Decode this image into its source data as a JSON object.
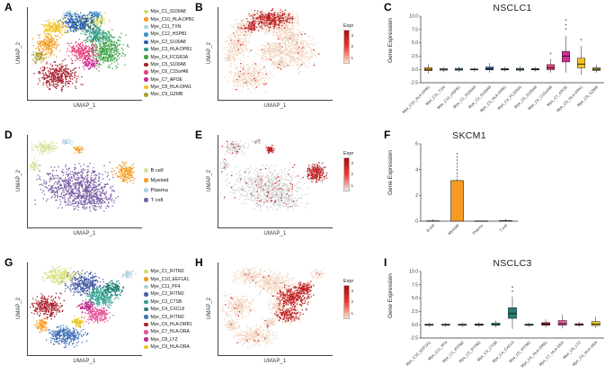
{
  "figure": {
    "panel_letters": [
      "A",
      "B",
      "C",
      "D",
      "E",
      "F",
      "G",
      "H",
      "I"
    ],
    "background": "#ffffff"
  },
  "axes": {
    "x": "UMAP_1",
    "y": "UMAP_2"
  },
  "blob_format": "x,y,rx,ry,n,color (normalized plot coords, y down)",
  "chart_data": [
    {
      "id": "A",
      "type": "scatter",
      "subtype": "umap-clusters",
      "seed": 11,
      "xlabel": "UMAP_1",
      "ylabel": "UMAP_2",
      "legend": [
        {
          "label": "Mye_C1_S100A8",
          "color": "#d4dd70"
        },
        {
          "label": "Mye_C10_HLA-DPB1",
          "color": "#f59b21"
        },
        {
          "label": "Mye_C11_TXN",
          "color": "#a8cfe3"
        },
        {
          "label": "Mye_C12_HSPB1",
          "color": "#4292c6"
        },
        {
          "label": "Mye_C2_S100A8",
          "color": "#2b5fad"
        },
        {
          "label": "Mye_C3_HLA-DPB1",
          "color": "#2e9e8e"
        },
        {
          "label": "Mye_C4_FCGR3A",
          "color": "#41a347"
        },
        {
          "label": "Mye_C5_S100A8",
          "color": "#a81e2c"
        },
        {
          "label": "Mye_C6_C15orf48",
          "color": "#e8417f"
        },
        {
          "label": "Mye_C7_APOE",
          "color": "#cf2d95"
        },
        {
          "label": "Mye_C8_HLA-DPA1",
          "color": "#f3c320"
        },
        {
          "label": "Mye_C9_GZMB",
          "color": "#b09c2f"
        }
      ],
      "blobs": [
        [
          0.52,
          0.18,
          0.1,
          0.06,
          150,
          "#d4dd70"
        ],
        [
          0.62,
          0.12,
          0.05,
          0.04,
          60,
          "#d4dd70"
        ],
        [
          0.16,
          0.4,
          0.07,
          0.08,
          200,
          "#f59b21"
        ],
        [
          0.36,
          0.07,
          0.05,
          0.025,
          60,
          "#a8cfe3"
        ],
        [
          0.58,
          0.07,
          0.04,
          0.025,
          50,
          "#4292c6"
        ],
        [
          0.44,
          0.16,
          0.12,
          0.07,
          330,
          "#2b5fad"
        ],
        [
          0.6,
          0.3,
          0.08,
          0.07,
          200,
          "#2e9e8e"
        ],
        [
          0.68,
          0.46,
          0.11,
          0.13,
          400,
          "#41a347"
        ],
        [
          0.26,
          0.73,
          0.12,
          0.1,
          360,
          "#a81e2c"
        ],
        [
          0.47,
          0.47,
          0.09,
          0.07,
          240,
          "#e8417f"
        ],
        [
          0.53,
          0.6,
          0.05,
          0.04,
          80,
          "#cf2d95"
        ],
        [
          0.22,
          0.21,
          0.07,
          0.06,
          170,
          "#f3c320"
        ],
        [
          0.1,
          0.52,
          0.04,
          0.05,
          70,
          "#b09c2f"
        ]
      ]
    },
    {
      "id": "B",
      "type": "scatter",
      "subtype": "umap-feature",
      "seed": 22,
      "xlabel": "UMAP_1",
      "ylabel": "UMAP_2",
      "base_from": "A",
      "base_color": "#f2d8c4",
      "highlight": "#bf1f26",
      "speckle": 0.05,
      "hot": [
        [
          0.45,
          0.12,
          0.12,
          0.06,
          280
        ],
        [
          0.28,
          0.2,
          0.05,
          0.04,
          60
        ]
      ],
      "colorbar": {
        "label": "Expr",
        "ticks": [
          "3",
          "2",
          "1"
        ],
        "high": "#a50f15",
        "mid": "#ef3b2c",
        "low": "#fde0cd"
      }
    },
    {
      "id": "C",
      "type": "box",
      "title": "NSCLC1",
      "ylabel": "Gene Expression",
      "ylim": [
        -2.5,
        10
      ],
      "yticks": [
        10,
        7.5,
        5,
        2.5,
        0,
        -2.5
      ],
      "ytick_labels": [
        "10.0",
        "7.5",
        "5.0",
        "2.5",
        "0.0",
        "-2.5"
      ],
      "boxes": [
        {
          "label": "Mye_C10_HLA-DPB1",
          "color": "#f59b21",
          "lo": -0.8,
          "q1": -0.25,
          "med": 0.0,
          "q3": 0.35,
          "hi": 1.0
        },
        {
          "label": "Mye_C11_TXN",
          "color": "#a8cfe3",
          "lo": -0.5,
          "q1": -0.15,
          "med": 0.0,
          "q3": 0.15,
          "hi": 0.45
        },
        {
          "label": "Mye_C12_HSPB1",
          "color": "#4292c6",
          "lo": -0.5,
          "q1": -0.15,
          "med": 0.0,
          "q3": 0.2,
          "hi": 0.5
        },
        {
          "label": "Mye_C1_S100A8",
          "color": "#d4dd70",
          "lo": -0.4,
          "q1": -0.1,
          "med": 0.0,
          "q3": 0.1,
          "hi": 0.35
        },
        {
          "label": "Mye_C2_S100A8",
          "color": "#2b5fad",
          "lo": -0.6,
          "q1": -0.1,
          "med": 0.1,
          "q3": 0.45,
          "hi": 1.2
        },
        {
          "label": "Mye_C3_HLA-DPB1",
          "color": "#2e9e8e",
          "lo": -0.4,
          "q1": -0.1,
          "med": 0.0,
          "q3": 0.15,
          "hi": 0.5
        },
        {
          "label": "Mye_C4_FCGR3A",
          "color": "#41a347",
          "lo": -0.5,
          "q1": -0.15,
          "med": 0.0,
          "q3": 0.2,
          "hi": 0.6
        },
        {
          "label": "Mye_C5_S100A8",
          "color": "#a81e2c",
          "lo": -0.4,
          "q1": -0.1,
          "med": 0.0,
          "q3": 0.15,
          "hi": 0.45
        },
        {
          "label": "Mye_C6_C15orf48",
          "color": "#e8417f",
          "lo": -0.6,
          "q1": -0.05,
          "med": 0.3,
          "q3": 0.9,
          "hi": 2.0,
          "out": [
            3.0
          ]
        },
        {
          "label": "Mye_C7_APOE",
          "color": "#cf2d95",
          "lo": -0.6,
          "q1": 1.4,
          "med": 2.5,
          "q3": 3.4,
          "hi": 6.3,
          "out": [
            7.6,
            8.4,
            9.3
          ]
        },
        {
          "label": "Mye_C8_HLA-DPA1",
          "color": "#f3c320",
          "lo": -1.0,
          "q1": 0.3,
          "med": 1.0,
          "q3": 2.1,
          "hi": 4.4,
          "out": [
            5.6
          ]
        },
        {
          "label": "Mye_C9_GZMB",
          "color": "#b09c2f",
          "lo": -0.6,
          "q1": -0.2,
          "med": 0.0,
          "q3": 0.3,
          "hi": 0.9
        }
      ]
    },
    {
      "id": "D",
      "type": "scatter",
      "subtype": "umap-clusters",
      "seed": 33,
      "xlabel": "UMAP_1",
      "ylabel": "UMAP_2",
      "legend": [
        {
          "label": "B cell",
          "color": "#d5e39f"
        },
        {
          "label": "Myeloid",
          "color": "#f59b21"
        },
        {
          "label": "Plasma",
          "color": "#a8cfe3"
        },
        {
          "label": "T cell",
          "color": "#7a5ea6"
        }
      ],
      "blobs": [
        [
          0.4,
          0.54,
          0.21,
          0.14,
          650,
          "#7a5ea6"
        ],
        [
          0.53,
          0.68,
          0.15,
          0.09,
          260,
          "#7a5ea6"
        ],
        [
          0.14,
          0.13,
          0.07,
          0.05,
          140,
          "#d5e39f"
        ],
        [
          0.05,
          0.32,
          0.03,
          0.04,
          50,
          "#d5e39f"
        ],
        [
          0.84,
          0.4,
          0.06,
          0.07,
          170,
          "#f59b21"
        ],
        [
          0.44,
          0.15,
          0.03,
          0.03,
          40,
          "#f59b21"
        ],
        [
          0.33,
          0.07,
          0.03,
          0.02,
          30,
          "#a8cfe3"
        ]
      ]
    },
    {
      "id": "E",
      "type": "scatter",
      "subtype": "umap-feature",
      "seed": 44,
      "xlabel": "UMAP_1",
      "ylabel": "UMAP_2",
      "base_from": "D",
      "base_color": "#d4d4d4",
      "highlight": "#c22127",
      "speckle": 0.1,
      "hot": [
        [
          0.84,
          0.4,
          0.055,
          0.065,
          170
        ],
        [
          0.44,
          0.15,
          0.025,
          0.025,
          40
        ]
      ],
      "colorbar": {
        "label": "Expr",
        "ticks": [
          "3",
          "2",
          "1"
        ],
        "high": "#a50f15",
        "mid": "#ef3b2c",
        "low": "#ececec"
      }
    },
    {
      "id": "F",
      "type": "bar",
      "title": "SKCM1",
      "ylabel": "Gene Expression",
      "ylim": [
        0,
        6
      ],
      "yticks": [
        6,
        4,
        2,
        0
      ],
      "ytick_labels": [
        "6",
        "4",
        "2",
        "0"
      ],
      "bars": [
        {
          "label": "B cell",
          "value": 0.03,
          "err": 0.1,
          "color": "#d5e39f"
        },
        {
          "label": "Myeloid",
          "value": 3.15,
          "err": 2.25,
          "color": "#f59b21"
        },
        {
          "label": "Plasma",
          "value": 0.02,
          "err": 0,
          "color": "#a8cfe3"
        },
        {
          "label": "T cell",
          "value": 0.05,
          "err": 0.12,
          "color": "#7a5ea6"
        }
      ]
    },
    {
      "id": "G",
      "type": "scatter",
      "subtype": "umap-clusters",
      "seed": 55,
      "xlabel": "UMAP_1",
      "ylabel": "UMAP_2",
      "legend": [
        {
          "label": "Mye_C1_IFITM2",
          "color": "#d4dd70"
        },
        {
          "label": "Mye_C10_EEF1A1",
          "color": "#f59b21"
        },
        {
          "label": "Mye_C11_PF4",
          "color": "#a8cfe3"
        },
        {
          "label": "Mye_C2_IFITM2",
          "color": "#4a5fa5"
        },
        {
          "label": "Mye_C3_CTSB",
          "color": "#2e9e8e"
        },
        {
          "label": "Mye_C4_CXCL8",
          "color": "#227d74"
        },
        {
          "label": "Mye_C5_IFITM2",
          "color": "#3f6fb5"
        },
        {
          "label": "Mye_C6_HLA-DRB1",
          "color": "#a81e2c"
        },
        {
          "label": "Mye_C7_HLA-DRA",
          "color": "#e8559b"
        },
        {
          "label": "Mye_C8_LYZ",
          "color": "#c02a8a"
        },
        {
          "label": "Mye_C9_HLA-DRA",
          "color": "#e7c91f"
        }
      ],
      "blobs": [
        [
          0.28,
          0.14,
          0.1,
          0.06,
          220,
          "#d4dd70"
        ],
        [
          0.48,
          0.22,
          0.11,
          0.08,
          330,
          "#4a5fa5"
        ],
        [
          0.63,
          0.36,
          0.09,
          0.07,
          250,
          "#2e9e8e"
        ],
        [
          0.74,
          0.27,
          0.06,
          0.05,
          140,
          "#227d74"
        ],
        [
          0.32,
          0.78,
          0.11,
          0.07,
          300,
          "#3f6fb5"
        ],
        [
          0.16,
          0.46,
          0.09,
          0.08,
          260,
          "#a81e2c"
        ],
        [
          0.6,
          0.55,
          0.08,
          0.06,
          210,
          "#e8559b"
        ],
        [
          0.5,
          0.46,
          0.05,
          0.04,
          90,
          "#c02a8a"
        ],
        [
          0.44,
          0.63,
          0.04,
          0.035,
          70,
          "#e7c91f"
        ],
        [
          0.12,
          0.67,
          0.04,
          0.05,
          90,
          "#f59b21"
        ],
        [
          0.86,
          0.12,
          0.04,
          0.03,
          50,
          "#a8cfe3"
        ]
      ]
    },
    {
      "id": "H",
      "type": "scatter",
      "subtype": "umap-feature",
      "seed": 66,
      "xlabel": "UMAP_1",
      "ylabel": "UMAP_2",
      "base_from": "G",
      "base_color": "#f2d8c4",
      "highlight": "#bf1f26",
      "speckle": 0.04,
      "hot": [
        [
          0.64,
          0.38,
          0.1,
          0.08,
          260
        ],
        [
          0.6,
          0.55,
          0.07,
          0.05,
          120
        ],
        [
          0.74,
          0.27,
          0.05,
          0.05,
          90
        ]
      ],
      "colorbar": {
        "label": "Expr",
        "ticks": [
          "3",
          "2",
          "1"
        ],
        "high": "#a50f15",
        "mid": "#ef3b2c",
        "low": "#fde0cd"
      }
    },
    {
      "id": "I",
      "type": "box",
      "title": "NSCLC3",
      "ylabel": "Gene Expression",
      "ylim": [
        -2.5,
        10
      ],
      "yticks": [
        10,
        7.5,
        5,
        2.5,
        0,
        -2.5
      ],
      "ytick_labels": [
        "10.0",
        "7.5",
        "5.0",
        "2.5",
        "0.0",
        "-2.5"
      ],
      "boxes": [
        {
          "label": "Mye_C10_EEF1A1",
          "color": "#f59b21",
          "lo": -0.4,
          "q1": -0.12,
          "med": 0.0,
          "q3": 0.12,
          "hi": 0.4
        },
        {
          "label": "Mye_C11_PF4",
          "color": "#a8cfe3",
          "lo": -0.4,
          "q1": -0.12,
          "med": 0.0,
          "q3": 0.12,
          "hi": 0.4
        },
        {
          "label": "Mye_C1_IFITM2",
          "color": "#d4dd70",
          "lo": -0.4,
          "q1": -0.12,
          "med": 0.0,
          "q3": 0.12,
          "hi": 0.4
        },
        {
          "label": "Mye_C2_IFITM2",
          "color": "#4a5fa5",
          "lo": -0.45,
          "q1": -0.12,
          "med": 0.0,
          "q3": 0.15,
          "hi": 0.5
        },
        {
          "label": "Mye_C3_CTSB",
          "color": "#2e9e8e",
          "lo": -0.5,
          "q1": -0.1,
          "med": 0.05,
          "q3": 0.3,
          "hi": 0.8
        },
        {
          "label": "Mye_C4_CXCL8",
          "color": "#227d74",
          "lo": -0.8,
          "q1": 1.2,
          "med": 2.1,
          "q3": 3.2,
          "hi": 5.3,
          "out": [
            6.3,
            7.1
          ]
        },
        {
          "label": "Mye_C5_IFITM2",
          "color": "#3f6fb5",
          "lo": -0.4,
          "q1": -0.12,
          "med": 0.0,
          "q3": 0.12,
          "hi": 0.4
        },
        {
          "label": "Mye_C6_HLA-DRB1",
          "color": "#a81e2c",
          "lo": -0.5,
          "q1": -0.1,
          "med": 0.1,
          "q3": 0.4,
          "hi": 1.0
        },
        {
          "label": "Mye_C7_HLA-DRA",
          "color": "#e8559b",
          "lo": -0.7,
          "q1": -0.1,
          "med": 0.2,
          "q3": 0.8,
          "hi": 1.9
        },
        {
          "label": "Mye_C8_LYZ",
          "color": "#c02a8a",
          "lo": -0.4,
          "q1": -0.1,
          "med": 0.0,
          "q3": 0.2,
          "hi": 0.55
        },
        {
          "label": "Mye_C9_HLA-DRA",
          "color": "#e7c91f",
          "lo": -0.6,
          "q1": -0.15,
          "med": 0.1,
          "q3": 0.6,
          "hi": 1.5
        }
      ]
    }
  ]
}
